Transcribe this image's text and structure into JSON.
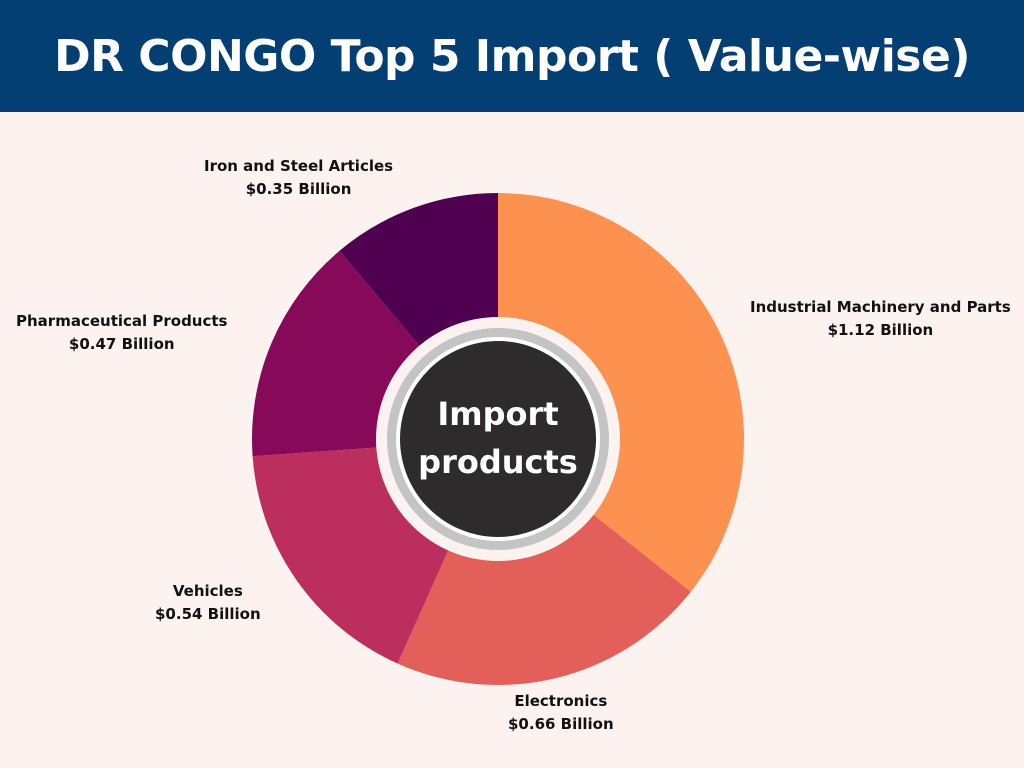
{
  "title": "DR CONGO Top 5 Import ( Value-wise)",
  "center_label": {
    "line1": "Import",
    "line2": "products"
  },
  "chart_data": {
    "type": "pie",
    "title": "DR CONGO Top 5 Import ( Value-wise)",
    "unit": "Billion USD",
    "slices": [
      {
        "name": "Industrial Machinery and Parts",
        "value": 1.12,
        "value_label": "$1.12 Billion",
        "color": "#fd9150"
      },
      {
        "name": "Electronics",
        "value": 0.66,
        "value_label": "$0.66 Billion",
        "color": "#e35f5a"
      },
      {
        "name": "Vehicles",
        "value": 0.54,
        "value_label": "$0.54 Billion",
        "color": "#bb2e5d"
      },
      {
        "name": "Pharmaceutical Products",
        "value": 0.47,
        "value_label": "$0.47 Billion",
        "color": "#870a5a"
      },
      {
        "name": "Iron and Steel Articles",
        "value": 0.35,
        "value_label": "$0.35 Billion",
        "color": "#4f0050"
      }
    ]
  },
  "colors": {
    "banner": "#043f74",
    "background": "#fcf3f1",
    "center_fill": "#2d2b2b",
    "center_ring": "#c4c4c4"
  }
}
